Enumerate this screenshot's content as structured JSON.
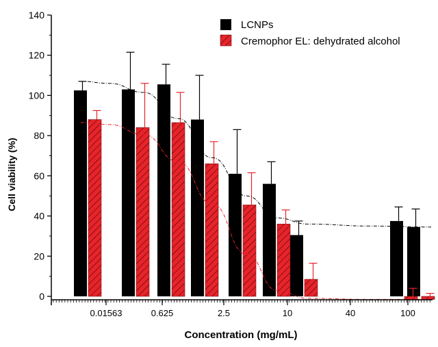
{
  "chart_data": {
    "type": "bar",
    "xlabel": "Concentration (mg/mL)",
    "ylabel": "Cell viability (%)",
    "ylim": [
      0,
      140
    ],
    "yticks": [
      0,
      20,
      40,
      60,
      80,
      100,
      120,
      140
    ],
    "x_tick_labels": [
      "0.01563",
      "0.625",
      "2.5",
      "10",
      "40",
      "100"
    ],
    "legend_position": "top-right",
    "colors": {
      "lcnps": "#000000",
      "cremophor": "#e8232a"
    },
    "series": [
      {
        "name": "LCNPs",
        "style": "solid",
        "values": [
          102.5,
          103.0,
          105.5,
          88.0,
          61.0,
          56.0,
          30.5,
          37.5,
          34.5
        ],
        "errors": [
          4.5,
          18.5,
          10.0,
          22.0,
          22.0,
          11.0,
          7.0,
          7.0,
          9.0
        ]
      },
      {
        "name": "Cremophor EL: dehydrated alcohol",
        "style": "hatched",
        "values": [
          88.0,
          84.0,
          86.5,
          66.0,
          45.5,
          36.0,
          8.5,
          -1.5,
          -1.5
        ],
        "errors": [
          4.5,
          22.0,
          15.0,
          11.0,
          16.0,
          7.0,
          8.0,
          4.0,
          1.5
        ]
      }
    ],
    "fit_curves": [
      {
        "series": "LCNPs",
        "y": [
          107.0,
          106.0,
          101.5,
          88.5,
          69.0,
          50.0,
          39.0,
          36.0,
          35.0,
          34.5
        ]
      },
      {
        "series": "Cremophor EL: dehydrated alcohol",
        "y": [
          86.5,
          85.5,
          80.5,
          67.0,
          46.0,
          21.0,
          3.0,
          -1.0,
          -1.5,
          -1.5
        ]
      }
    ]
  }
}
